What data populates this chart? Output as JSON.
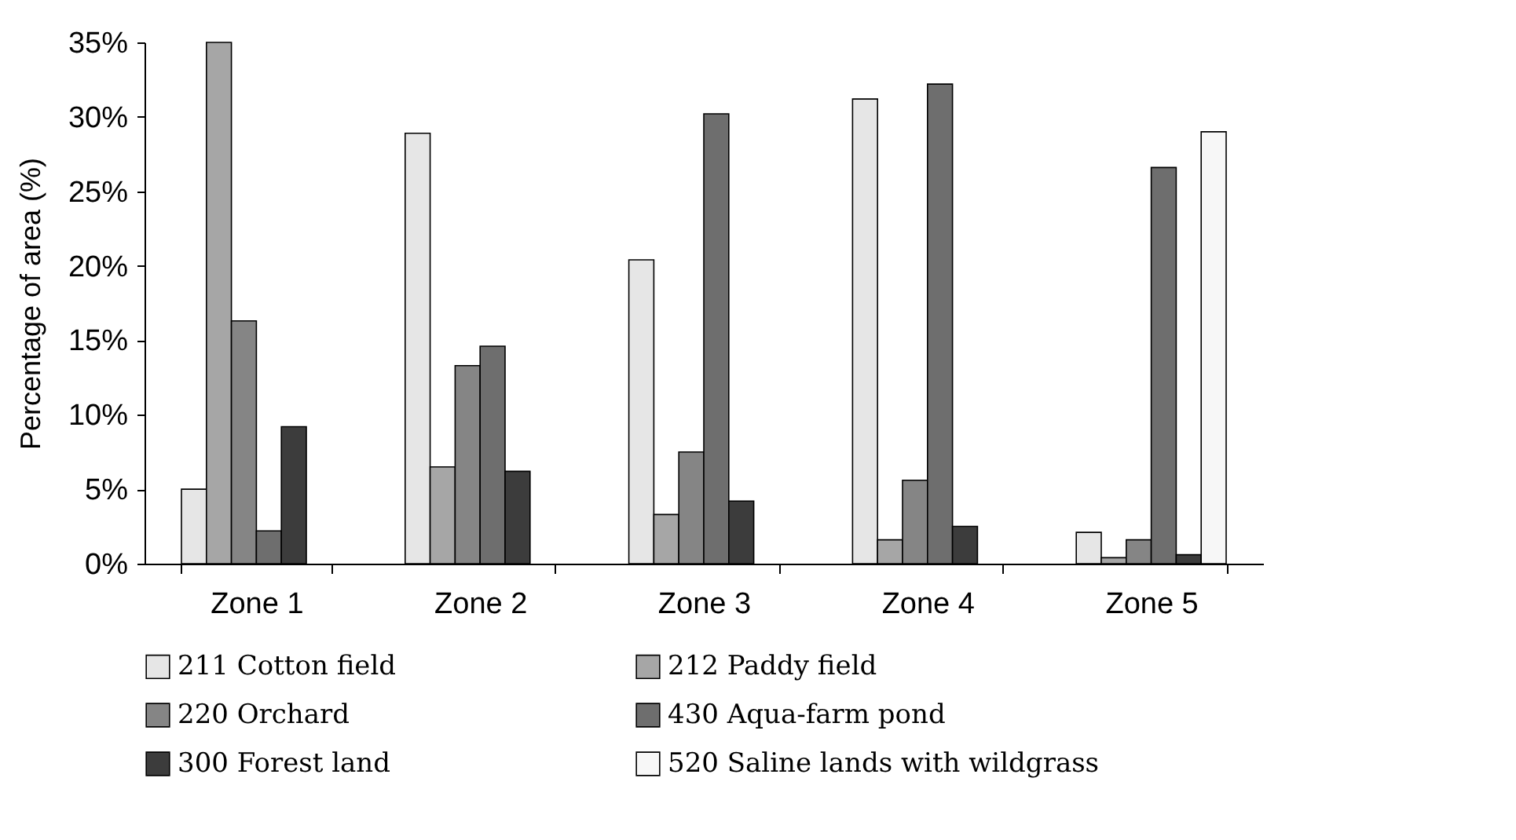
{
  "chart_data": {
    "type": "bar",
    "ylabel": "Percentage of area (%)",
    "categories": [
      "Zone 1",
      "Zone 2",
      "Zone 3",
      "Zone 4",
      "Zone 5"
    ],
    "series": [
      {
        "name": "211 Cotton field",
        "color": "#e6e6e6",
        "values": [
          5.0,
          28.9,
          20.4,
          31.2,
          2.1
        ]
      },
      {
        "name": "212 Paddy field",
        "color": "#a6a6a6",
        "values": [
          35.0,
          6.5,
          3.3,
          1.6,
          0.4
        ]
      },
      {
        "name": "220 Orchard",
        "color": "#858585",
        "values": [
          16.3,
          13.3,
          7.5,
          5.6,
          1.6
        ]
      },
      {
        "name": "430 Aqua-farm pond",
        "color": "#6e6e6e",
        "values": [
          2.2,
          14.6,
          30.2,
          32.2,
          26.6
        ]
      },
      {
        "name": "300 Forest land",
        "color": "#3c3c3c",
        "values": [
          9.2,
          6.2,
          4.2,
          2.5,
          0.6
        ]
      },
      {
        "name": "520 Saline lands with wildgrass",
        "color": "#f7f7f7",
        "values": [
          null,
          null,
          null,
          null,
          29.0
        ]
      }
    ],
    "ylim": [
      0,
      35
    ],
    "yticks": [
      {
        "value": 0,
        "label": "0%"
      },
      {
        "value": 5,
        "label": "5%"
      },
      {
        "value": 10,
        "label": "10%"
      },
      {
        "value": 15,
        "label": "15%"
      },
      {
        "value": 20,
        "label": "20%"
      },
      {
        "value": 25,
        "label": "25%"
      },
      {
        "value": 30,
        "label": "30%"
      },
      {
        "value": 35,
        "label": "35%"
      }
    ],
    "grid": false,
    "legend": "bottom"
  }
}
